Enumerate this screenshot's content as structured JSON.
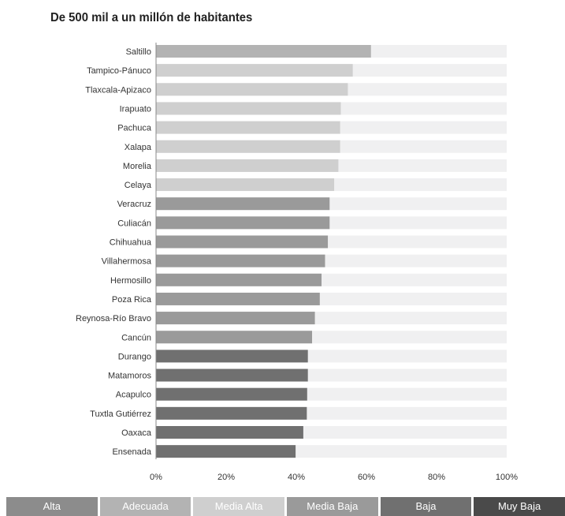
{
  "title": "De 500 mil a un millón de habitantes",
  "chart_data": {
    "type": "bar",
    "orientation": "horizontal",
    "title": "De 500 mil a un millón de habitantes",
    "xlabel": "",
    "ylabel": "",
    "xlim": [
      0,
      100
    ],
    "ticks": [
      "0%",
      "20%",
      "40%",
      "60%",
      "80%",
      "100%"
    ],
    "categories": [
      "Saltillo",
      "Tampico-Pánuco",
      "Tlaxcala-Apizaco",
      "Irapuato",
      "Pachuca",
      "Xalapa",
      "Morelia",
      "Celaya",
      "Veracruz",
      "Culiacán",
      "Chihuahua",
      "Villahermosa",
      "Hermosillo",
      "Poza Rica",
      "Reynosa-Río Bravo",
      "Cancún",
      "Durango",
      "Matamoros",
      "Acapulco",
      "Tuxtla Gutiérrez",
      "Oaxaca",
      "Ensenada"
    ],
    "values": [
      61.3,
      56.1,
      54.7,
      52.7,
      52.5,
      52.5,
      52.0,
      50.8,
      49.5,
      49.5,
      49.0,
      48.2,
      47.2,
      46.7,
      45.3,
      44.5,
      43.3,
      43.3,
      43.1,
      43.0,
      42.0,
      39.8
    ],
    "levels": [
      "Adecuada",
      "Media Alta",
      "Media Alta",
      "Media Alta",
      "Media Alta",
      "Media Alta",
      "Media Alta",
      "Media Alta",
      "Media Baja",
      "Media Baja",
      "Media Baja",
      "Media Baja",
      "Media Baja",
      "Media Baja",
      "Media Baja",
      "Media Baja",
      "Baja",
      "Baja",
      "Baja",
      "Baja",
      "Baja",
      "Baja"
    ],
    "grid": false,
    "legend_position": "bottom"
  },
  "legend": [
    {
      "label": "Alta",
      "color": "#8c8c8c"
    },
    {
      "label": "Adecuada",
      "color": "#b3b3b3"
    },
    {
      "label": "Media Alta",
      "color": "#cfcfcf"
    },
    {
      "label": "Media Baja",
      "color": "#9a9a9a"
    },
    {
      "label": "Baja",
      "color": "#707070"
    },
    {
      "label": "Muy Baja",
      "color": "#4a4a4a"
    }
  ],
  "colors": {
    "track": "#f0f0f1",
    "axis": "#888888"
  }
}
